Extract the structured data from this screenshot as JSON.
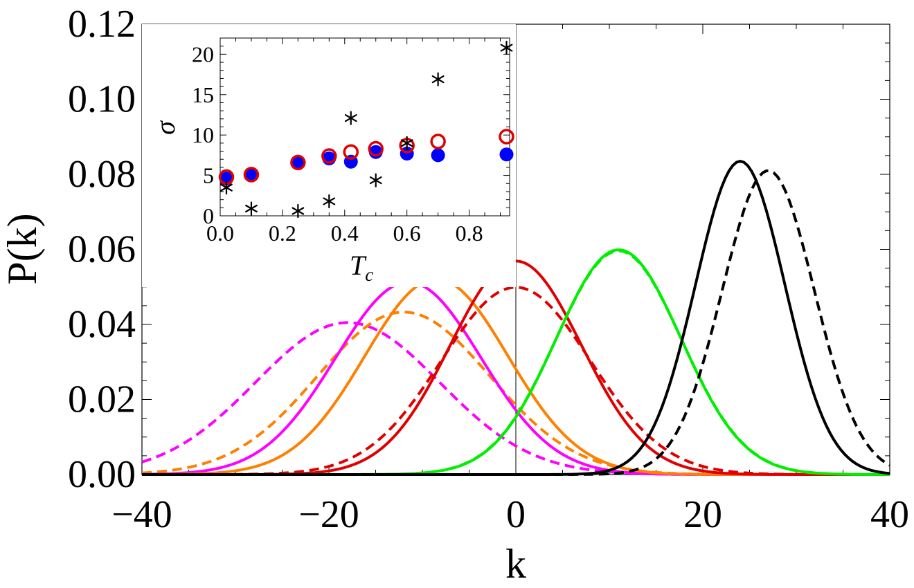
{
  "chart_data": [
    {
      "type": "line",
      "xlabel": "k",
      "ylabel": "P(k)",
      "xlim": [
        -40,
        40
      ],
      "ylim": [
        0,
        0.12
      ],
      "x_ticks": [
        "−40",
        "−20",
        "0",
        "20",
        "40"
      ],
      "y_ticks": [
        "0.00",
        "0.02",
        "0.04",
        "0.06",
        "0.08",
        "0.10",
        "0.12"
      ],
      "series": [
        {
          "color": "#ff00ff",
          "style": "dashed",
          "mean": -18,
          "peak": 0.0405
        },
        {
          "color": "#ff8000",
          "style": "dashed",
          "mean": -12,
          "peak": 0.0433
        },
        {
          "color": "#ff00ff",
          "style": "solid",
          "mean": -11.5,
          "peak": 0.0513
        },
        {
          "color": "#ff8000",
          "style": "solid",
          "mean": -8.5,
          "peak": 0.0521
        },
        {
          "color": "#e00000",
          "style": "dashed",
          "mean": 0,
          "peak": 0.0499
        },
        {
          "color": "#e00000",
          "style": "solid",
          "mean": 0,
          "peak": 0.0569
        },
        {
          "color": "#00ee00",
          "style": "dashed",
          "mean": 11,
          "peak": 0.0596
        },
        {
          "color": "#00ee00",
          "style": "solid",
          "mean": 11,
          "peak": 0.0599
        },
        {
          "color": "#000000",
          "style": "dashed",
          "mean": 27,
          "peak": 0.081
        },
        {
          "color": "#000000",
          "style": "solid",
          "mean": 24,
          "peak": 0.0835
        }
      ]
    },
    {
      "type": "scatter",
      "xlabel": "T_c",
      "ylabel": "σ",
      "xlim": [
        0,
        0.93
      ],
      "ylim": [
        0,
        22
      ],
      "x_ticks": [
        "0.0",
        "0.2",
        "0.4",
        "0.6",
        "0.8"
      ],
      "y_ticks": [
        "0",
        "5",
        "10",
        "15",
        "20"
      ],
      "series": [
        {
          "marker": "filled-circle",
          "color": "#0000ff",
          "x": [
            0.02,
            0.1,
            0.25,
            0.35,
            0.42,
            0.5,
            0.6,
            0.7,
            0.92
          ],
          "y": [
            4.6,
            5.0,
            6.5,
            7.1,
            6.7,
            7.9,
            7.7,
            7.5,
            7.6
          ]
        },
        {
          "marker": "open-circle",
          "color": "#e00000",
          "x": [
            0.02,
            0.1,
            0.25,
            0.35,
            0.42,
            0.5,
            0.6,
            0.7,
            0.92
          ],
          "y": [
            4.8,
            5.1,
            6.6,
            7.4,
            7.9,
            8.3,
            8.7,
            9.2,
            9.8
          ]
        },
        {
          "marker": "asterisk",
          "color": "#000000",
          "x": [
            0.02,
            0.1,
            0.25,
            0.35,
            0.42,
            0.5,
            0.6,
            0.7,
            0.92
          ],
          "y": [
            3.5,
            0.9,
            0.6,
            1.8,
            12.1,
            4.4,
            9.0,
            16.9,
            20.8
          ]
        }
      ]
    }
  ]
}
